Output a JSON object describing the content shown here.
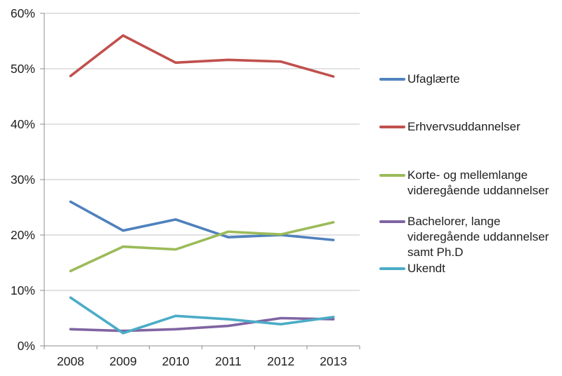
{
  "chart_data": {
    "type": "line",
    "categories": [
      "2008",
      "2009",
      "2010",
      "2011",
      "2012",
      "2013"
    ],
    "series": [
      {
        "name": "Ufaglærte",
        "color": "#4F81BD",
        "values": [
          26.0,
          20.8,
          22.8,
          19.6,
          20.0,
          19.1
        ]
      },
      {
        "name": "Erhvervsuddannelser",
        "color": "#C0504D",
        "values": [
          48.7,
          56.0,
          51.1,
          51.6,
          51.3,
          48.6
        ]
      },
      {
        "name": "Korte- og mellemlange videregående uddannelser",
        "color": "#9BBB59",
        "values": [
          13.5,
          17.9,
          17.4,
          20.6,
          20.1,
          22.3
        ]
      },
      {
        "name": "Bachelorer, lange videregående uddannelser samt Ph.D",
        "color": "#8064A2",
        "values": [
          3.0,
          2.7,
          3.0,
          3.6,
          5.0,
          4.8
        ]
      },
      {
        "name": "Ukendt",
        "color": "#4BACC6",
        "values": [
          8.7,
          2.3,
          5.4,
          4.8,
          3.9,
          5.2
        ]
      }
    ],
    "ylim": [
      0,
      60
    ],
    "ytick_step": 10,
    "ytick_labels": [
      "0%",
      "10%",
      "20%",
      "30%",
      "40%",
      "50%",
      "60%"
    ],
    "xlabel": "",
    "ylabel": "",
    "grid": "horizontal",
    "legend_position": "right"
  },
  "colors": {
    "gridline": "#C4C4C4",
    "axis": "#8C8C8C",
    "text": "#1F1F1F",
    "background": "#FFFFFF"
  }
}
